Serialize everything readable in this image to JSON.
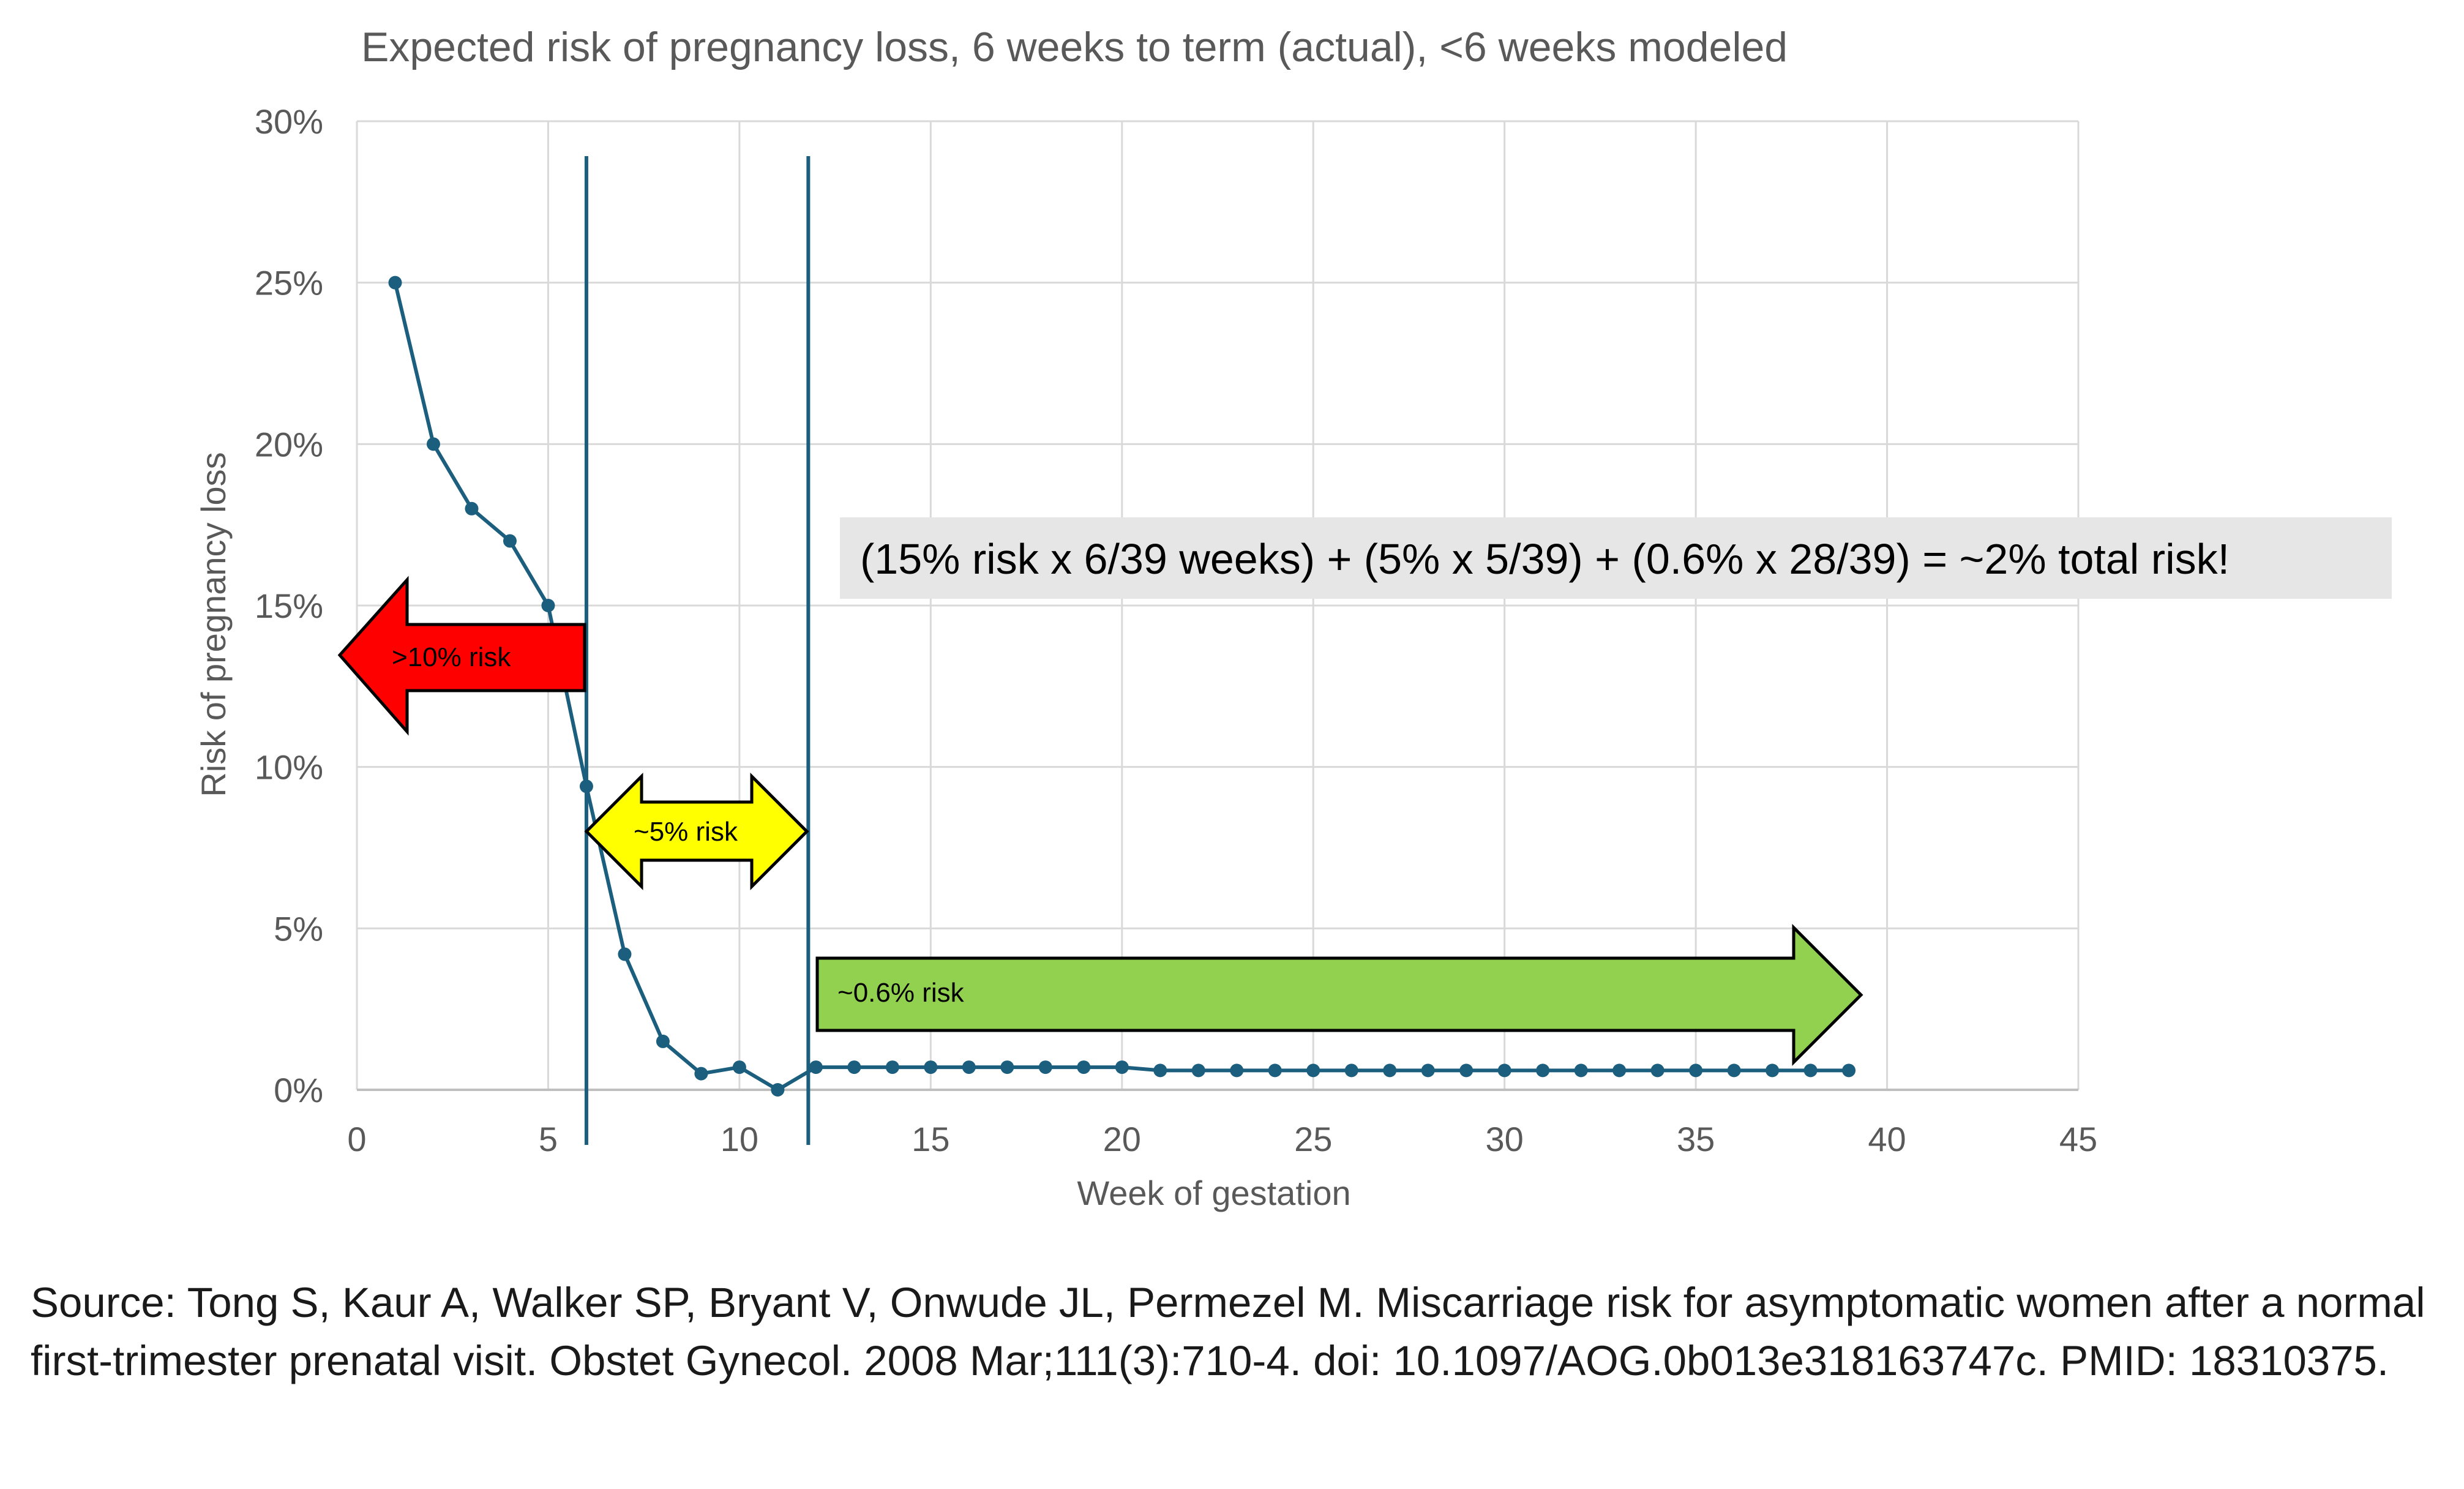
{
  "chart_data": {
    "type": "line",
    "title": "Expected risk of pregnancy loss, 6 weeks to term (actual), <6 weeks modeled",
    "xlabel": "Week of gestation",
    "ylabel": "Risk of pregnancy loss",
    "xlim": [
      0,
      45
    ],
    "ylim": [
      0,
      0.3
    ],
    "x_ticks": [
      0,
      5,
      10,
      15,
      20,
      25,
      30,
      35,
      40,
      45
    ],
    "y_ticks": [
      0,
      0.05,
      0.1,
      0.15,
      0.2,
      0.25,
      0.3
    ],
    "y_tick_labels": [
      "0%",
      "5%",
      "10%",
      "15%",
      "20%",
      "25%",
      "30%"
    ],
    "grid": true,
    "legend": "none",
    "series_color": "#1b5e7e",
    "x": [
      1,
      2,
      3,
      4,
      5,
      6,
      7,
      8,
      9,
      10,
      11,
      12,
      13,
      14,
      15,
      16,
      17,
      18,
      19,
      20,
      21,
      22,
      23,
      24,
      25,
      26,
      27,
      28,
      29,
      30,
      31,
      32,
      33,
      34,
      35,
      36,
      37,
      38,
      39
    ],
    "y": [
      0.25,
      0.2,
      0.18,
      0.17,
      0.15,
      0.094,
      0.042,
      0.015,
      0.005,
      0.007,
      0.0,
      0.007,
      0.007,
      0.007,
      0.007,
      0.007,
      0.007,
      0.007,
      0.007,
      0.007,
      0.006,
      0.006,
      0.006,
      0.006,
      0.006,
      0.006,
      0.006,
      0.006,
      0.006,
      0.006,
      0.006,
      0.006,
      0.006,
      0.006,
      0.006,
      0.006,
      0.006,
      0.006,
      0.006
    ],
    "vlines": [
      6,
      11.8
    ],
    "annotations": {
      "red_arrow": {
        "label": ">10% risk",
        "color": "#ff0000"
      },
      "yellow_arrow": {
        "label": "~5% risk",
        "color": "#ffff00"
      },
      "green_arrow": {
        "label": "~0.6% risk",
        "color": "#92d050"
      },
      "formula": "(15% risk x 6/39 weeks) + (5% x 5/39) + (0.6% x 28/39) = ~2% total risk!"
    }
  },
  "source": "Source: Tong S, Kaur A, Walker SP, Bryant V, Onwude JL, Permezel M. Miscarriage risk for asymptomatic women after a normal first-trimester prenatal visit. Obstet Gynecol. 2008 Mar;111(3):710-4. doi: 10.1097/AOG.0b013e318163747c. PMID: 18310375."
}
